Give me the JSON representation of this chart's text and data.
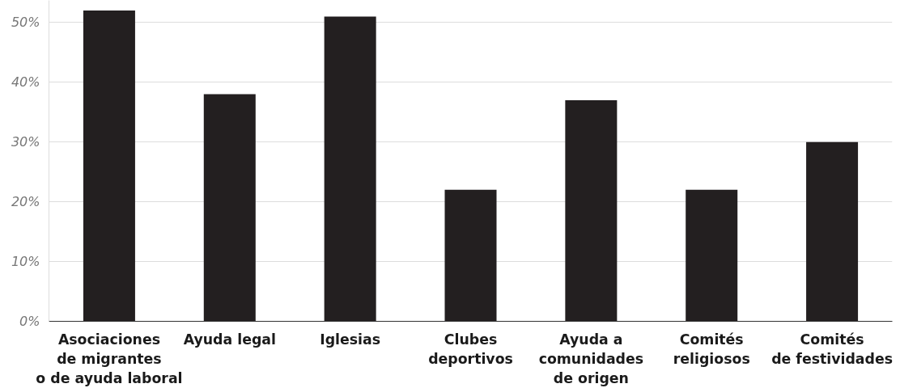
{
  "chart_data": {
    "type": "bar",
    "categories": [
      "Asociaciones\nde migrantes\no de ayuda laboral",
      "Ayuda legal",
      "Iglesias",
      "Clubes\ndeportivos",
      "Ayuda a\ncomunidades\nde origen",
      "Comités\nreligiosos",
      "Comités\nde festividades"
    ],
    "values": [
      52,
      38,
      51,
      22,
      37,
      22,
      30
    ],
    "color": "#231f20",
    "ylim": [
      0,
      53.7
    ],
    "yticks": [
      {
        "value": 0,
        "label": "0%"
      },
      {
        "value": 10,
        "label": "10%"
      },
      {
        "value": 20,
        "label": "20%"
      },
      {
        "value": 30,
        "label": "30%"
      },
      {
        "value": 40,
        "label": "40%"
      },
      {
        "value": 50,
        "label": "50%"
      }
    ],
    "grid": "y"
  }
}
